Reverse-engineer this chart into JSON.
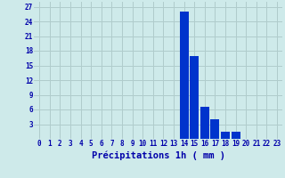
{
  "hours": [
    0,
    1,
    2,
    3,
    4,
    5,
    6,
    7,
    8,
    9,
    10,
    11,
    12,
    13,
    14,
    15,
    16,
    17,
    18,
    19,
    20,
    21,
    22,
    23
  ],
  "values": [
    0,
    0,
    0,
    0,
    0,
    0,
    0,
    0,
    0,
    0,
    0,
    0,
    0,
    0,
    26,
    17,
    6.5,
    4,
    1.5,
    1.5,
    0,
    0,
    0,
    0
  ],
  "bar_color": "#0033cc",
  "background_color": "#ceeaea",
  "grid_color": "#b0cccc",
  "xlabel": "Précipitations 1h ( mm )",
  "ylim": [
    0,
    28
  ],
  "yticks": [
    0,
    3,
    6,
    9,
    12,
    15,
    18,
    21,
    24,
    27
  ],
  "xticks": [
    0,
    1,
    2,
    3,
    4,
    5,
    6,
    7,
    8,
    9,
    10,
    11,
    12,
    13,
    14,
    15,
    16,
    17,
    18,
    19,
    20,
    21,
    22,
    23
  ],
  "tick_color": "#0000aa",
  "tick_fontsize": 5.5,
  "xlabel_fontsize": 7.5,
  "xlabel_color": "#0000aa"
}
